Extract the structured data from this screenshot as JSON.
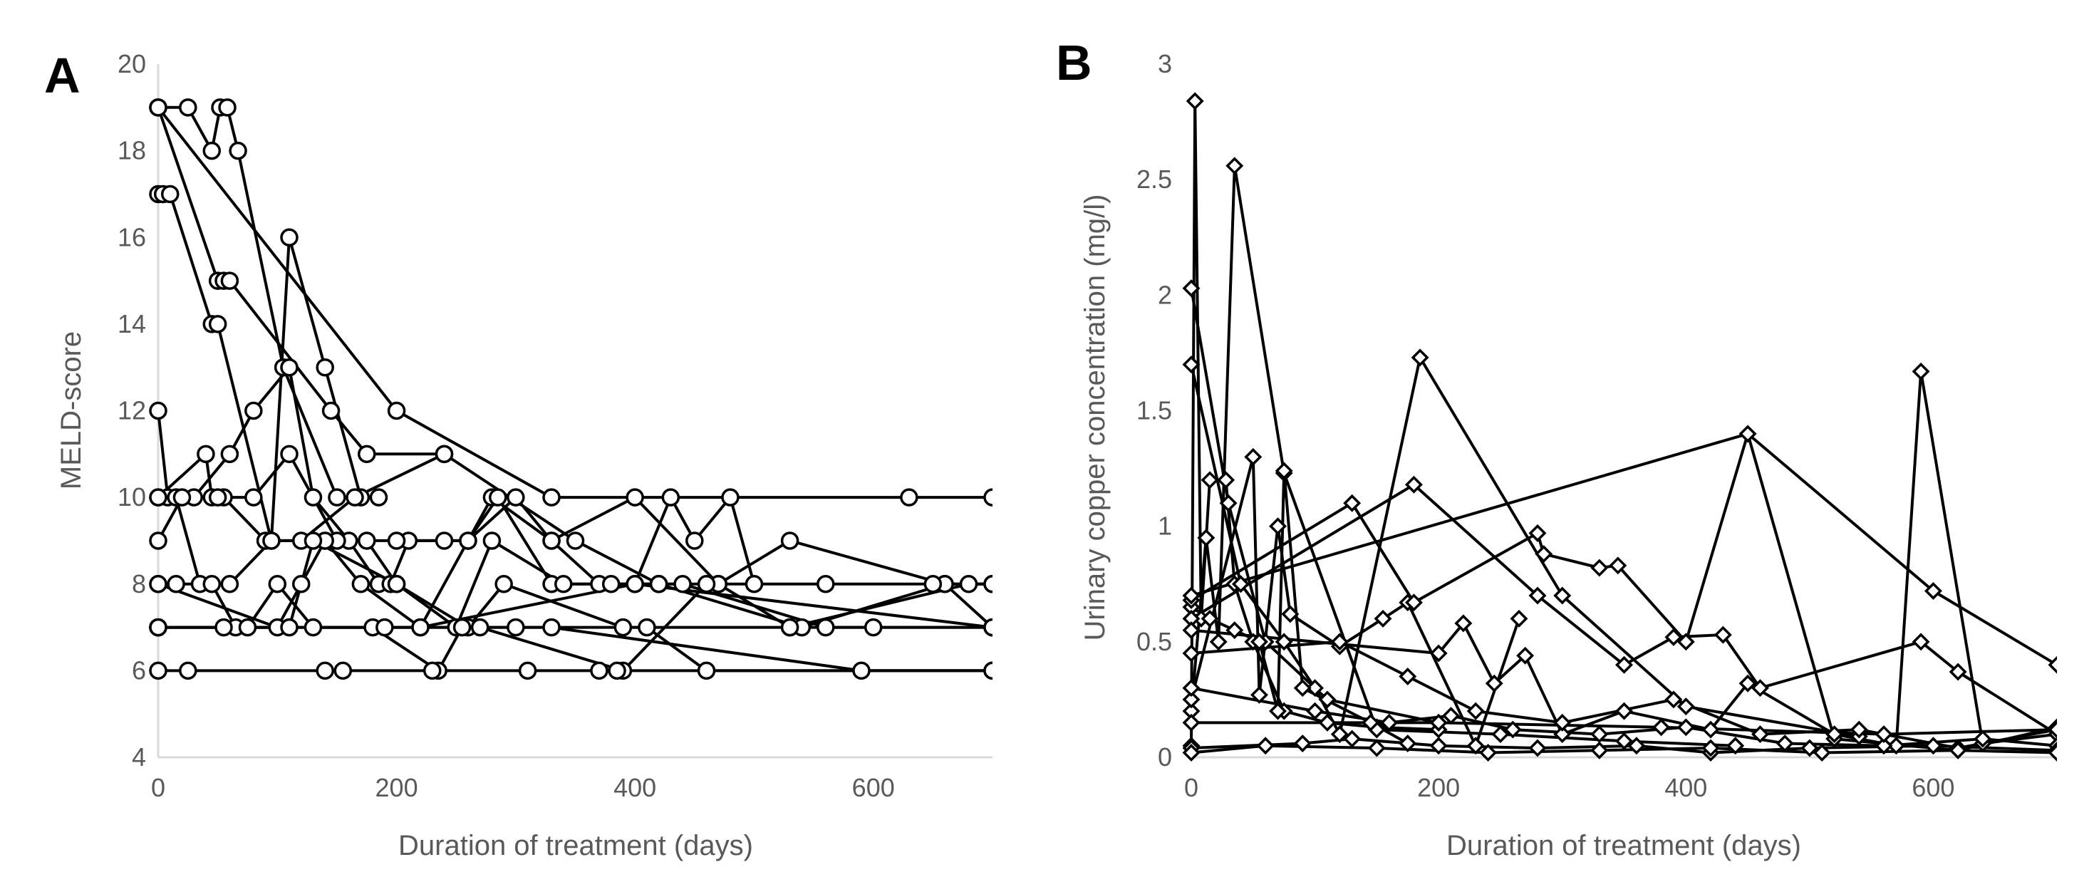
{
  "chart_data": [
    {
      "type": "line",
      "panel_label": "A",
      "xlabel": "Duration of treatment (days)",
      "ylabel": "MELD-score",
      "xlim": [
        0,
        700
      ],
      "ylim": [
        4,
        20
      ],
      "xticks": [
        0,
        200,
        400,
        600
      ],
      "yticks": [
        4,
        6,
        8,
        10,
        12,
        14,
        16,
        18,
        20
      ],
      "grid": false,
      "marker": "circle",
      "series": [
        {
          "x": [
            0,
            25,
            45,
            52,
            58,
            67,
            105,
            150,
            185
          ],
          "y": [
            19,
            19,
            18,
            19,
            19,
            18,
            13,
            10,
            10
          ]
        },
        {
          "x": [
            0,
            4,
            10,
            45,
            50,
            95,
            110,
            140,
            170
          ],
          "y": [
            17,
            17,
            17,
            14,
            14,
            9,
            16,
            13,
            10
          ]
        },
        {
          "x": [
            0,
            50,
            55,
            60,
            145,
            175,
            240
          ],
          "y": [
            19,
            15,
            15,
            15,
            12,
            11,
            11
          ]
        },
        {
          "x": [
            0,
            200,
            330,
            630,
            700
          ],
          "y": [
            19,
            12,
            10,
            10,
            10
          ]
        },
        {
          "x": [
            0,
            8,
            30,
            60,
            80,
            110,
            130,
            160,
            185,
            195,
            210,
            240,
            260,
            300,
            330,
            370,
            400,
            430,
            450,
            480,
            500
          ],
          "y": [
            12,
            10,
            10,
            11,
            12,
            13,
            10,
            9,
            8,
            8,
            9,
            9,
            9,
            10,
            9,
            8,
            8,
            10,
            9,
            10,
            8
          ]
        },
        {
          "x": [
            0,
            40,
            45,
            55,
            90,
            120,
            165,
            240,
            350,
            420,
            470,
            530,
            660,
            700
          ],
          "y": [
            10,
            11,
            10,
            10,
            9,
            9,
            10,
            11,
            9,
            8,
            8,
            9,
            8,
            7
          ]
        },
        {
          "x": [
            0,
            15,
            35,
            60,
            95,
            140,
            170,
            220,
            280,
            330,
            400,
            470,
            530,
            600,
            700
          ],
          "y": [
            10,
            10,
            8,
            8,
            9,
            9,
            8,
            7,
            10,
            9,
            10,
            8,
            7,
            7,
            7
          ]
        },
        {
          "x": [
            0,
            20,
            50,
            80,
            110,
            150,
            200,
            260,
            285,
            330,
            380,
            420,
            540,
            660,
            700
          ],
          "y": [
            9,
            10,
            10,
            10,
            11,
            9,
            9,
            9,
            10,
            8,
            8,
            8,
            7,
            8,
            8
          ]
        },
        {
          "x": [
            0,
            100,
            120,
            140,
            175,
            200,
            250,
            280,
            340,
            420,
            440,
            560,
            700
          ],
          "y": [
            8,
            7,
            8,
            9,
            9,
            8,
            7,
            9,
            8,
            8,
            8,
            7,
            7
          ]
        },
        {
          "x": [
            0,
            15,
            45,
            65,
            110,
            130,
            200,
            260,
            290,
            390,
            530,
            680,
            700
          ],
          "y": [
            8,
            8,
            8,
            7,
            7,
            9,
            8,
            7,
            8,
            7,
            7,
            8,
            8
          ]
        },
        {
          "x": [
            0,
            55,
            75,
            100,
            130,
            180,
            235,
            255,
            270,
            390,
            460,
            560,
            650,
            700
          ],
          "y": [
            7,
            7,
            7,
            8,
            7,
            7,
            6,
            7,
            7,
            6,
            8,
            8,
            8,
            8
          ]
        },
        {
          "x": [
            0,
            190,
            300,
            410,
            460,
            700
          ],
          "y": [
            7,
            7,
            7,
            7,
            6,
            6
          ]
        },
        {
          "x": [
            0,
            330,
            590,
            700
          ],
          "y": [
            7,
            7,
            6,
            6
          ]
        },
        {
          "x": [
            0,
            25,
            140,
            155,
            230,
            310,
            370,
            385,
            700
          ],
          "y": [
            6,
            6,
            6,
            6,
            6,
            6,
            6,
            6,
            6
          ]
        },
        {
          "x": [
            0,
            220,
            400,
            700
          ],
          "y": [
            7,
            7,
            8,
            7
          ]
        }
      ]
    },
    {
      "type": "line",
      "panel_label": "B",
      "xlabel": "Duration of treatment (days)",
      "ylabel": "Urinary copper concentration (mg/l)",
      "xlim": [
        0,
        700
      ],
      "ylim": [
        0,
        3
      ],
      "xticks": [
        0,
        200,
        400,
        600
      ],
      "yticks": [
        0,
        0.5,
        1,
        1.5,
        2,
        2.5,
        3
      ],
      "ytick_labels": [
        "0",
        "0.5",
        "1",
        "1.5",
        "2",
        "2.5",
        "3"
      ],
      "grid": false,
      "marker": "diamond",
      "series": [
        {
          "x": [
            0,
            3,
            8,
            15,
            28,
            35,
            50,
            75,
            110,
            150,
            200
          ],
          "y": [
            0.05,
            2.84,
            0.6,
            1.2,
            1.2,
            0.75,
            0.5,
            0.2,
            0.15,
            0.13,
            0.12
          ]
        },
        {
          "x": [
            0,
            12,
            22,
            35,
            75,
            150,
            250,
            350,
            440
          ],
          "y": [
            0.2,
            0.95,
            0.5,
            2.56,
            1.23,
            0.12,
            0.1,
            0.07,
            0.05
          ]
        },
        {
          "x": [
            0,
            30,
            60,
            110,
            200
          ],
          "y": [
            2.03,
            1.1,
            0.5,
            0.25,
            0.15
          ]
        },
        {
          "x": [
            0,
            40,
            75,
            100,
            120,
            185,
            300,
            400,
            540
          ],
          "y": [
            1.7,
            0.75,
            0.5,
            0.3,
            0.1,
            1.73,
            0.7,
            0.22,
            0.09
          ]
        },
        {
          "x": [
            0,
            15,
            35,
            55,
            70,
            75,
            90,
            145,
            175
          ],
          "y": [
            0.65,
            0.6,
            0.55,
            0.5,
            0.2,
            1.24,
            0.3,
            0.15,
            0.06
          ]
        },
        {
          "x": [
            0,
            50,
            55,
            70,
            80,
            120,
            155,
            175,
            230,
            265
          ],
          "y": [
            0.25,
            1.3,
            0.27,
            1.0,
            0.62,
            0.48,
            0.6,
            0.67,
            0.05,
            0.6
          ]
        },
        {
          "x": [
            0,
            130,
            180,
            280,
            285,
            330,
            345,
            400,
            450,
            520,
            620,
            700
          ],
          "y": [
            0.68,
            1.1,
            0.67,
            0.97,
            0.88,
            0.82,
            0.83,
            0.5,
            1.4,
            0.08,
            0.03,
            0.13
          ]
        },
        {
          "x": [
            0,
            180,
            280,
            350,
            390,
            430,
            460,
            590,
            620,
            700
          ],
          "y": [
            0.6,
            1.18,
            0.7,
            0.4,
            0.52,
            0.53,
            0.3,
            0.5,
            0.37,
            0.1
          ]
        },
        {
          "x": [
            0,
            450,
            600,
            700
          ],
          "y": [
            0.7,
            1.4,
            0.72,
            0.4
          ]
        },
        {
          "x": [
            0,
            200,
            220,
            245,
            270,
            300,
            350,
            420,
            450,
            520,
            570,
            590,
            640,
            700
          ],
          "y": [
            0.55,
            0.45,
            0.58,
            0.32,
            0.44,
            0.1,
            0.2,
            0.12,
            0.32,
            0.1,
            0.05,
            1.67,
            0.06,
            0.1
          ]
        },
        {
          "x": [
            0,
            120,
            175,
            230,
            300,
            390,
            460,
            540,
            620,
            700
          ],
          "y": [
            0.45,
            0.5,
            0.35,
            0.2,
            0.15,
            0.25,
            0.1,
            0.12,
            0.04,
            0.12
          ]
        },
        {
          "x": [
            0,
            100,
            160,
            210,
            260,
            330,
            400,
            480,
            560,
            640,
            700
          ],
          "y": [
            0.3,
            0.2,
            0.15,
            0.18,
            0.12,
            0.1,
            0.13,
            0.06,
            0.05,
            0.08,
            0.05
          ]
        },
        {
          "x": [
            0,
            90,
            130,
            200,
            280,
            360,
            420,
            500,
            600,
            700
          ],
          "y": [
            0.04,
            0.06,
            0.08,
            0.05,
            0.04,
            0.05,
            0.02,
            0.04,
            0.05,
            0.03
          ]
        },
        {
          "x": [
            0,
            60,
            150,
            240,
            330,
            420,
            510,
            620,
            700
          ],
          "y": [
            0.02,
            0.05,
            0.04,
            0.02,
            0.03,
            0.04,
            0.02,
            0.03,
            0.02
          ]
        },
        {
          "x": [
            0,
            200,
            380,
            560,
            700
          ],
          "y": [
            0.15,
            0.15,
            0.13,
            0.1,
            0.12
          ]
        }
      ]
    }
  ]
}
